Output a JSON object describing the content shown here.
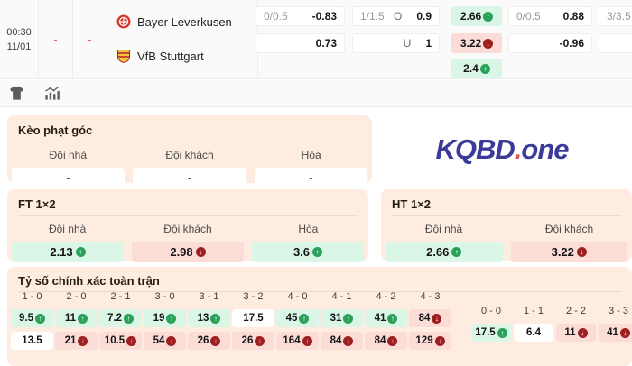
{
  "match": {
    "time": "00:30",
    "date": "11/01",
    "home_score": "-",
    "away_score": "-",
    "home_team": "Bayer Leverkusen",
    "away_team": "VfB Stuttgart",
    "ft_handicap": {
      "line": "0/0.5",
      "home_odds": "-0.83",
      "away_odds": "0.73"
    },
    "ft_ou": {
      "line": "1/1.5",
      "over_label": "O",
      "over_odds": "0.9",
      "under_label": "U",
      "under_odds": "1"
    },
    "ft_1x2": {
      "home": {
        "value": "2.66",
        "trend": "up",
        "tone": "green"
      },
      "away": {
        "value": "3.22",
        "trend": "down",
        "tone": "pink"
      },
      "draw": {
        "value": "2.4",
        "trend": "up",
        "tone": "green"
      }
    },
    "ht_handicap": {
      "line": "0/0.5",
      "home_odds": "0.88",
      "away_odds": "-0.96"
    },
    "ht_ou": {
      "line": "3/3.5"
    }
  },
  "toolbar": {
    "jersey_icon": "jersey",
    "stats_icon": "stats"
  },
  "corner_section": {
    "title": "Kèo phạt góc",
    "headers": [
      "Đội nhà",
      "Đội khách",
      "Hòa"
    ],
    "values": [
      "-",
      "-",
      "-"
    ]
  },
  "logo": {
    "main": "KQBD",
    "dot": ".",
    "suffix": "one"
  },
  "ft_section": {
    "title": "FT 1×2",
    "headers": [
      "Đội nhà",
      "Đội khách",
      "Hòa"
    ],
    "cells": [
      {
        "value": "2.13",
        "trend": "up",
        "tone": "green"
      },
      {
        "value": "2.98",
        "trend": "down",
        "tone": "pink"
      },
      {
        "value": "3.6",
        "trend": "up",
        "tone": "green"
      }
    ]
  },
  "ht_section": {
    "title": "HT 1×2",
    "headers": [
      "Đội nhà",
      "Đội khách"
    ],
    "cells": [
      {
        "value": "2.66",
        "trend": "up",
        "tone": "green"
      },
      {
        "value": "3.22",
        "trend": "down",
        "tone": "pink"
      }
    ]
  },
  "exact_score": {
    "title": "Tỷ số chính xác toàn trận",
    "columns": [
      {
        "label": "1 - 0",
        "top": {
          "value": "9.5",
          "trend": "up",
          "tone": "green"
        },
        "bottom": {
          "value": "13.5",
          "trend": "",
          "tone": "white"
        }
      },
      {
        "label": "2 - 0",
        "top": {
          "value": "11",
          "trend": "up",
          "tone": "green"
        },
        "bottom": {
          "value": "21",
          "trend": "down",
          "tone": "pink"
        }
      },
      {
        "label": "2 - 1",
        "top": {
          "value": "7.2",
          "trend": "up",
          "tone": "green"
        },
        "bottom": {
          "value": "10.5",
          "trend": "down",
          "tone": "pink"
        }
      },
      {
        "label": "3 - 0",
        "top": {
          "value": "19",
          "trend": "up",
          "tone": "green"
        },
        "bottom": {
          "value": "54",
          "trend": "down",
          "tone": "pink"
        }
      },
      {
        "label": "3 - 1",
        "top": {
          "value": "13",
          "trend": "up",
          "tone": "green"
        },
        "bottom": {
          "value": "26",
          "trend": "down",
          "tone": "pink"
        }
      },
      {
        "label": "3 - 2",
        "top": {
          "value": "17.5",
          "trend": "",
          "tone": "white"
        },
        "bottom": {
          "value": "26",
          "trend": "down",
          "tone": "pink"
        }
      },
      {
        "label": "4 - 0",
        "top": {
          "value": "45",
          "trend": "up",
          "tone": "green"
        },
        "bottom": {
          "value": "164",
          "trend": "down",
          "tone": "pink"
        }
      },
      {
        "label": "4 - 1",
        "top": {
          "value": "31",
          "trend": "up",
          "tone": "green"
        },
        "bottom": {
          "value": "84",
          "trend": "down",
          "tone": "pink"
        }
      },
      {
        "label": "4 - 2",
        "top": {
          "value": "41",
          "trend": "up",
          "tone": "green"
        },
        "bottom": {
          "value": "84",
          "trend": "down",
          "tone": "pink"
        }
      },
      {
        "label": "4 - 3",
        "top": {
          "value": "84",
          "trend": "down",
          "tone": "pink"
        },
        "bottom": {
          "value": "129",
          "trend": "down",
          "tone": "pink"
        }
      }
    ],
    "draw_columns": [
      {
        "label": "0 - 0",
        "value": "17.5",
        "trend": "up",
        "tone": "green"
      },
      {
        "label": "1 - 1",
        "value": "6.4",
        "trend": "",
        "tone": "white"
      },
      {
        "label": "2 - 2",
        "value": "11",
        "trend": "down",
        "tone": "pink"
      },
      {
        "label": "3 - 3",
        "value": "41",
        "trend": "down",
        "tone": "pink"
      }
    ]
  },
  "colors": {
    "accent_green": "#2ba05a",
    "accent_red": "#9e1f1f",
    "cell_green": "#d9f6e6",
    "cell_pink": "#fbdcd7",
    "card_peach": "#fdecdf",
    "logo_navy": "#3c3b99",
    "logo_dot_red": "#e0524e"
  }
}
